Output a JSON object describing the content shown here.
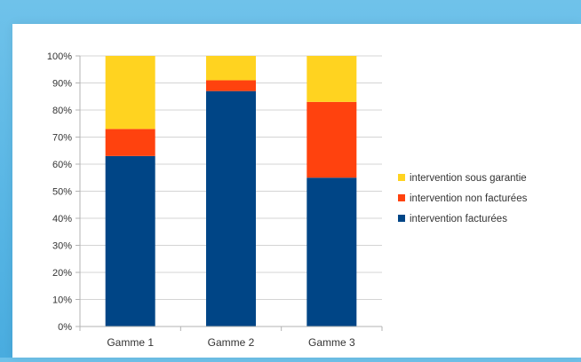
{
  "chart_data": {
    "type": "bar",
    "stacked": true,
    "percent": true,
    "title": "",
    "xlabel": "",
    "ylabel": "",
    "ylim": [
      0,
      100
    ],
    "yticks": [
      "0%",
      "10%",
      "20%",
      "30%",
      "40%",
      "50%",
      "60%",
      "70%",
      "80%",
      "90%",
      "100%"
    ],
    "grid": true,
    "legend": "right",
    "categories": [
      "Gamme 1",
      "Gamme 2",
      "Gamme 3"
    ],
    "series": [
      {
        "name": "intervention facturées",
        "color": "#004586",
        "values": [
          63,
          87,
          55
        ]
      },
      {
        "name": "intervention non facturées",
        "color": "#ff420e",
        "values": [
          10,
          4,
          28
        ]
      },
      {
        "name": "intervention sous garantie",
        "color": "#ffd320",
        "values": [
          27,
          9,
          17
        ]
      }
    ],
    "legend_order": [
      "intervention sous garantie",
      "intervention non facturées",
      "intervention facturées"
    ]
  }
}
